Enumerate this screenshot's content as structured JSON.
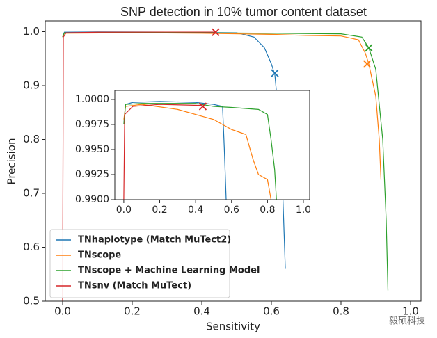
{
  "chart_data": [
    {
      "type": "line",
      "title": "SNP detection in 10% tumor content dataset",
      "x_label": "Sensitivity",
      "y_label": "Precision",
      "xlim": [
        -0.05,
        1.03
      ],
      "ylim": [
        0.5,
        1.02
      ],
      "xticks": [
        {
          "value": 0,
          "label": "0.0"
        },
        0.2,
        0.4,
        0.6,
        0.8,
        {
          "value": 1,
          "label": "1.0"
        }
      ],
      "yticks": [
        0.5,
        0.6,
        0.7,
        0.8,
        0.9,
        {
          "value": 1,
          "label": "1.0"
        }
      ],
      "legend": "lower left",
      "watermark": "毅硕科技",
      "series": [
        {
          "name": "TNhaplotype (Match MuTect2)",
          "color": "#1f77b4",
          "x": [
            0,
            0.005,
            0.1,
            0.3,
            0.5,
            0.55,
            0.58,
            0.6,
            0.61,
            0.62,
            0.63,
            0.64
          ],
          "values": [
            0.99,
            0.999,
            0.9995,
            0.9993,
            0.998,
            0.99,
            0.97,
            0.94,
            0.92,
            0.85,
            0.75,
            0.56
          ],
          "marker": {
            "x": 0.61,
            "y": 0.923
          }
        },
        {
          "name": "TNscope",
          "color": "#ff7f0e",
          "x": [
            0,
            0.005,
            0.2,
            0.4,
            0.6,
            0.7,
            0.8,
            0.85,
            0.87,
            0.88,
            0.9,
            0.91,
            0.915
          ],
          "values": [
            0.99,
            0.997,
            0.998,
            0.997,
            0.995,
            0.993,
            0.992,
            0.985,
            0.96,
            0.94,
            0.88,
            0.8,
            0.725
          ],
          "marker": {
            "x": 0.875,
            "y": 0.94
          }
        },
        {
          "name": "TNscope + Machine Learning Model",
          "color": "#2ca02c",
          "x": [
            0,
            0.005,
            0.4,
            0.6,
            0.8,
            0.86,
            0.88,
            0.9,
            0.92,
            0.93,
            0.935
          ],
          "values": [
            0.99,
            0.998,
            0.998,
            0.997,
            0.996,
            0.99,
            0.97,
            0.93,
            0.8,
            0.65,
            0.52
          ],
          "marker": {
            "x": 0.88,
            "y": 0.97
          }
        },
        {
          "name": "TNsnv (Match MuTect)",
          "color": "#d62728",
          "x": [
            0,
            0.002,
            0.01,
            0.1,
            0.3,
            0.44
          ],
          "values": [
            0.5,
            0.99,
            0.998,
            0.999,
            0.9993,
            0.9993
          ],
          "marker": {
            "x": 0.44,
            "y": 0.999
          }
        }
      ]
    },
    {
      "type": "line",
      "xlim": [
        -0.05,
        1.035
      ],
      "ylim": [
        0.99,
        1.0009
      ],
      "xticks": [
        {
          "value": 0,
          "label": "0.0"
        },
        0.2,
        0.4,
        0.6,
        0.8,
        {
          "value": 1,
          "label": "1.0"
        }
      ],
      "yticks": [
        {
          "value": 0.99,
          "label": "0.9900"
        },
        0.9925,
        {
          "value": 0.995,
          "label": "0.9950"
        },
        0.9975,
        {
          "value": 1,
          "label": "1.0000"
        }
      ],
      "series": [
        {
          "color": "#1f77b4",
          "x": [
            0,
            0.01,
            0.05,
            0.2,
            0.4,
            0.5,
            0.55,
            0.56,
            0.57
          ],
          "values": [
            0.9975,
            0.9995,
            0.9997,
            0.9998,
            0.9997,
            0.9995,
            0.9993,
            0.995,
            0.99
          ]
        },
        {
          "color": "#ff7f0e",
          "x": [
            0,
            0.01,
            0.1,
            0.3,
            0.4,
            0.5,
            0.6,
            0.68,
            0.72,
            0.75,
            0.8,
            0.82
          ],
          "values": [
            0.998,
            0.9993,
            0.9995,
            0.999,
            0.9985,
            0.998,
            0.997,
            0.9965,
            0.994,
            0.9925,
            0.992,
            0.99
          ]
        },
        {
          "color": "#2ca02c",
          "x": [
            0,
            0.01,
            0.1,
            0.4,
            0.5,
            0.6,
            0.75,
            0.8,
            0.82,
            0.84,
            0.85
          ],
          "values": [
            0.9975,
            0.9995,
            0.9996,
            0.9996,
            0.9993,
            0.9992,
            0.999,
            0.9985,
            0.996,
            0.993,
            0.99
          ]
        },
        {
          "color": "#d62728",
          "x": [
            0,
            0.005,
            0.05,
            0.2,
            0.43
          ],
          "values": [
            0.99,
            0.9985,
            0.9993,
            0.9995,
            0.9994
          ],
          "marker": {
            "x": 0.44,
            "y": 0.9993
          }
        }
      ]
    }
  ]
}
